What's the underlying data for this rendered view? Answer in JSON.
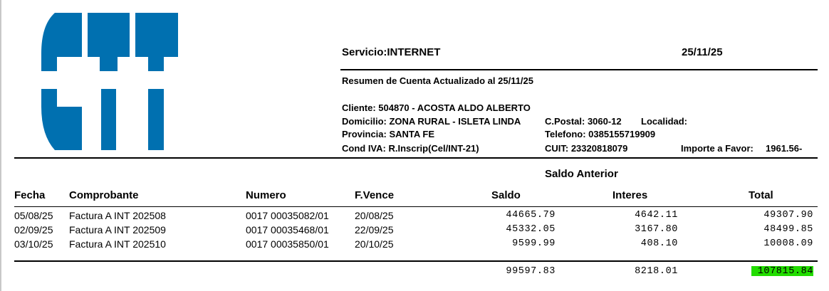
{
  "logo": {
    "text": "CTT",
    "color": "#0070B0"
  },
  "header": {
    "servicio": "Servicio:INTERNET",
    "date": "25/11/25",
    "resumen": "Resumen de Cuenta Actualizado al 25/11/25"
  },
  "client": {
    "cliente": "Cliente: 504870 - ACOSTA ALDO ALBERTO",
    "domicilio": "Domicilio: ZONA RURAL - ISLETA LINDA",
    "provincia": "Provincia: SANTA FE",
    "cond_iva": "Cond IVA: R.Inscrip(Cel/INT-21)",
    "cpostal": "C.Postal: 3060-12",
    "localidad": "Localidad:",
    "telefono": "Telefono: 0385155719909",
    "cuit": "CUIT: 23320818079",
    "importe_label": "Importe a Favor:",
    "importe_value": "1961.56-"
  },
  "table": {
    "section_title": "Saldo Anterior",
    "columns": [
      "Fecha",
      "Comprobante",
      "Numero",
      "F.Vence",
      "Saldo",
      "Interes",
      "Total"
    ],
    "rows": [
      [
        "05/08/25",
        "Factura A INT 202508",
        "0017 00035082/01",
        "20/08/25",
        "44665.79",
        "4642.11",
        "49307.90"
      ],
      [
        "02/09/25",
        "Factura A INT 202509",
        "0017 00035468/01",
        "22/09/25",
        "45332.05",
        "3167.80",
        "48499.85"
      ],
      [
        "03/10/25",
        "Factura A INT 202510",
        "0017 00035850/01",
        "20/10/25",
        "9599.99",
        "408.10",
        "10008.09"
      ]
    ],
    "totals": {
      "saldo": "99597.83",
      "interes": "8218.01",
      "total": "107815.84"
    },
    "highlight_color": "#22DD00"
  }
}
